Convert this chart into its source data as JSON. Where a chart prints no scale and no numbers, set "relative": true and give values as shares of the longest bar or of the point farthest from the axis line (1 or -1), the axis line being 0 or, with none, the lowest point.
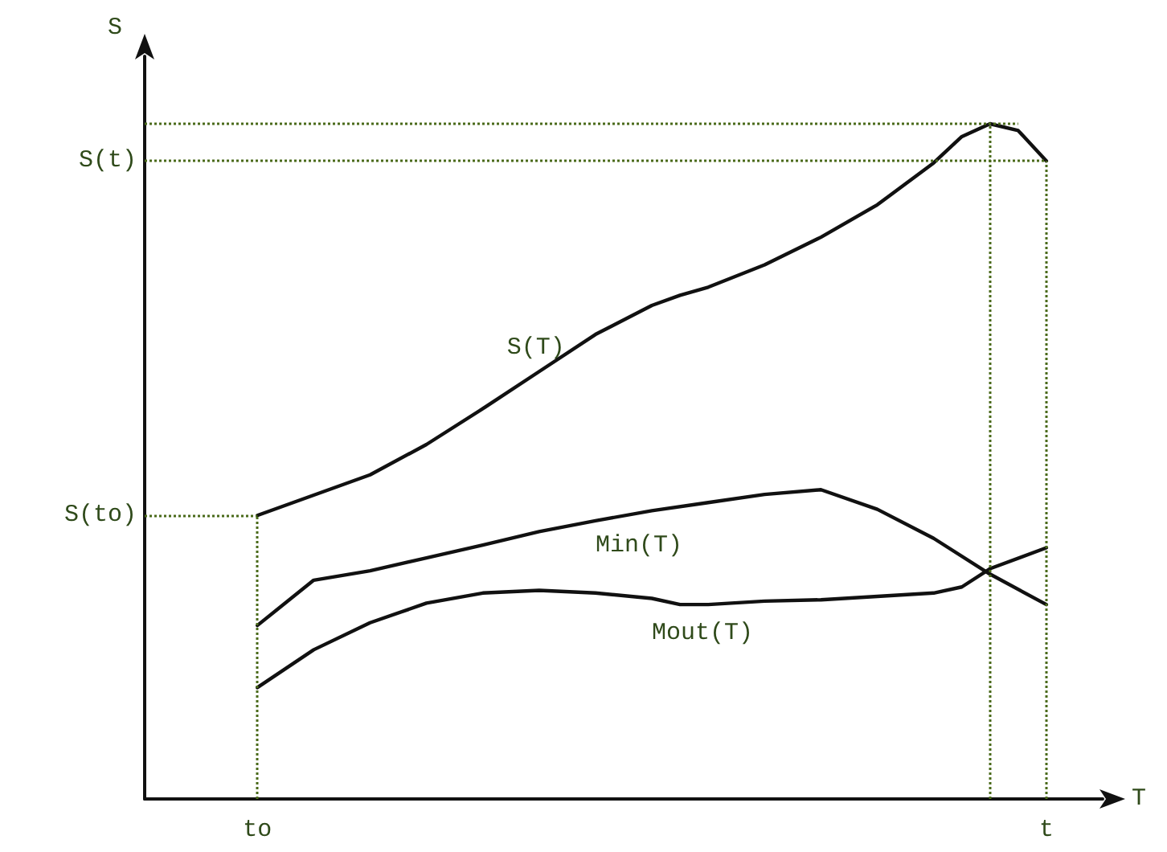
{
  "chart_data": {
    "type": "line",
    "relative": true,
    "xlabel": "T",
    "ylabel": "S",
    "categories": [
      null,
      null,
      null,
      null,
      "to",
      null,
      null,
      null,
      null,
      null,
      null,
      null,
      null,
      null,
      null,
      null,
      null,
      null,
      null,
      null,
      null,
      null,
      null,
      null,
      null,
      null,
      null,
      null,
      null,
      null,
      null,
      null,
      "t",
      null,
      null
    ],
    "series": [
      {
        "name": "S(T)",
        "color": "#111111",
        "values": [
          null,
          null,
          null,
          null,
          0.42,
          null,
          0.45,
          null,
          0.48,
          null,
          0.525,
          null,
          0.578,
          null,
          0.633,
          null,
          0.688,
          null,
          0.731,
          0.746,
          0.758,
          null,
          0.791,
          null,
          0.832,
          null,
          0.88,
          null,
          0.942,
          0.981,
          1.0,
          0.99,
          0.945,
          null,
          null
        ]
      },
      {
        "name": "Min(T)",
        "color": "#111111",
        "values": [
          null,
          null,
          null,
          null,
          0.257,
          null,
          0.324,
          null,
          0.338,
          null,
          0.357,
          null,
          0.376,
          null,
          0.396,
          null,
          0.412,
          null,
          0.427,
          null,
          0.439,
          null,
          0.451,
          null,
          0.458,
          null,
          0.429,
          null,
          0.386,
          null,
          0.333,
          null,
          0.288,
          null,
          null
        ]
      },
      {
        "name": "Mout(T)",
        "color": "#111111",
        "values": [
          null,
          null,
          null,
          null,
          0.165,
          null,
          0.221,
          null,
          0.261,
          null,
          0.29,
          null,
          0.305,
          null,
          0.309,
          null,
          0.305,
          null,
          0.297,
          0.288,
          0.288,
          null,
          0.293,
          null,
          0.295,
          null,
          0.3,
          null,
          0.305,
          0.314,
          0.341,
          null,
          0.372,
          null,
          null
        ]
      }
    ],
    "ref_lines": [
      {
        "axis": "y",
        "value": 0.945,
        "label": "S(t)",
        "color": "#4a6a1a",
        "line_style": "dotted"
      },
      {
        "axis": "y",
        "value": 0.42,
        "label": "S(to)",
        "color": "#4a6a1a",
        "line_style": "dotted"
      },
      {
        "axis": "x",
        "value": "to",
        "color": "#4a6a1a",
        "line_style": "dotted"
      },
      {
        "axis": "x",
        "value": "t",
        "color": "#4a6a1a",
        "line_style": "dotted"
      }
    ],
    "legend": false,
    "marker": "none",
    "line_style": "solid"
  }
}
